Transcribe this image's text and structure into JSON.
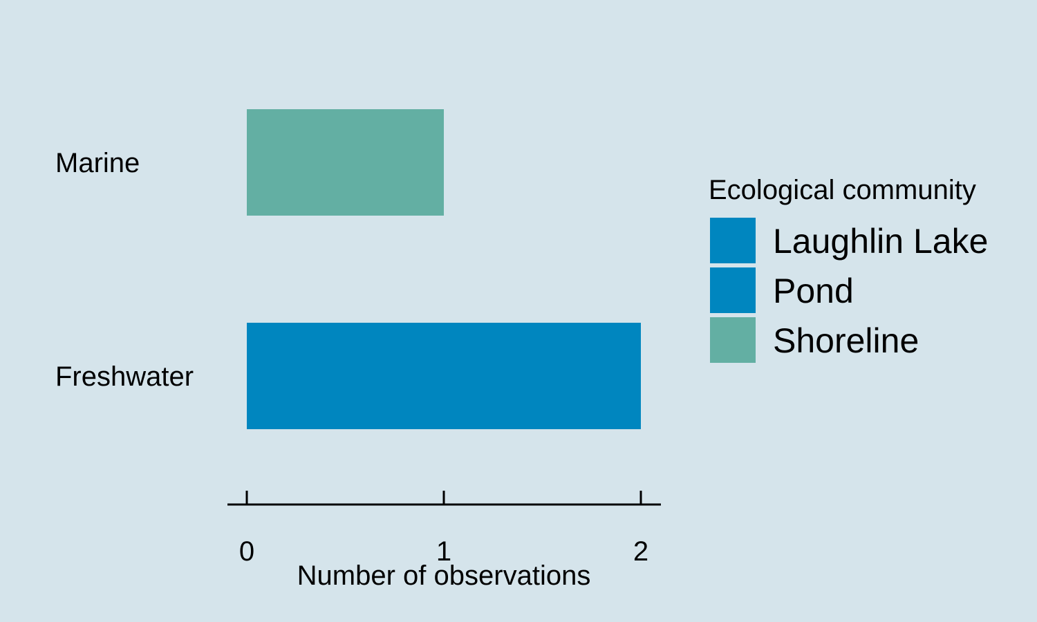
{
  "chart_data": {
    "type": "bar",
    "orientation": "horizontal",
    "stacked": true,
    "categories": [
      "Marine",
      "Freshwater"
    ],
    "series": [
      {
        "name": "Laughlin Lake",
        "values": [
          0,
          0
        ],
        "color": "#0086bf"
      },
      {
        "name": "Pond",
        "values": [
          0,
          2
        ],
        "color": "#0086bf"
      },
      {
        "name": "Shoreline",
        "values": [
          1,
          0
        ],
        "color": "#63afa3"
      }
    ],
    "xlabel": "Number of observations",
    "ylabel": "",
    "xlim": [
      0,
      2
    ],
    "xticks": [
      "0",
      "1",
      "2"
    ],
    "grid": false,
    "legend": {
      "title": "Ecological community",
      "placement": "right"
    }
  },
  "colors": {
    "background": "#d5e4eb",
    "axis": "#000000"
  }
}
